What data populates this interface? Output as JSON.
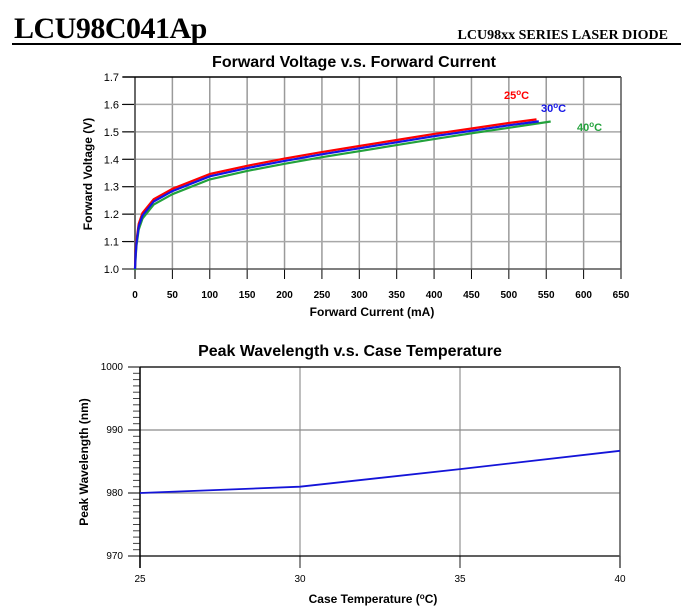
{
  "header": {
    "part_number": "LCU98C041Ap",
    "series": "LCU98xx SERIES LASER DIODE"
  },
  "colors": {
    "t25": "#ff0000",
    "t30": "#1414e6",
    "t40": "#23a23c",
    "wavelength_line": "#1414d8",
    "grid": "#a0a0a0",
    "axis": "#000000"
  },
  "chart_data": [
    {
      "type": "line",
      "title": "Forward Voltage v.s. Forward Current",
      "xlabel": "Forward Current (mA)",
      "ylabel": "Forward Voltage (V)",
      "xlim": [
        0,
        650
      ],
      "ylim": [
        1.0,
        1.7
      ],
      "xticks": [
        "0",
        "50",
        "100",
        "150",
        "200",
        "250",
        "300",
        "350",
        "400",
        "450",
        "500",
        "550",
        "600",
        "650"
      ],
      "yticks": [
        "1.0",
        "1.1",
        "1.2",
        "1.3",
        "1.4",
        "1.5",
        "1.6",
        "1.7"
      ],
      "grid": true,
      "series": [
        {
          "name": "25°C",
          "label_main": "25",
          "label_deg": "o",
          "label_unit": "C",
          "color_key": "t25",
          "x": [
            0,
            1,
            2,
            5,
            10,
            25,
            50,
            100,
            150,
            200,
            250,
            300,
            350,
            400,
            450,
            500,
            537
          ],
          "y": [
            1.0,
            1.06,
            1.1,
            1.16,
            1.2,
            1.25,
            1.288,
            1.342,
            1.372,
            1.398,
            1.422,
            1.444,
            1.466,
            1.488,
            1.508,
            1.528,
            1.541
          ]
        },
        {
          "name": "30°C",
          "label_main": "30",
          "label_deg": "o",
          "label_unit": "C",
          "color_key": "t30",
          "x": [
            0,
            1,
            2,
            5,
            10,
            25,
            50,
            100,
            150,
            200,
            250,
            300,
            350,
            400,
            450,
            500,
            540
          ],
          "y": [
            1.0,
            1.055,
            1.095,
            1.155,
            1.195,
            1.246,
            1.284,
            1.338,
            1.368,
            1.394,
            1.418,
            1.44,
            1.462,
            1.484,
            1.504,
            1.524,
            1.538
          ]
        },
        {
          "name": "40°C",
          "label_main": "40",
          "label_deg": "o",
          "label_unit": "C",
          "color_key": "t40",
          "x": [
            0,
            1,
            2,
            5,
            10,
            25,
            50,
            100,
            150,
            200,
            250,
            300,
            350,
            400,
            450,
            500,
            556
          ],
          "y": [
            1.0,
            1.05,
            1.09,
            1.148,
            1.188,
            1.239,
            1.277,
            1.331,
            1.362,
            1.388,
            1.412,
            1.434,
            1.456,
            1.478,
            1.499,
            1.519,
            1.542
          ]
        }
      ]
    },
    {
      "type": "line",
      "title": "Peak Wavelength v.s. Case Temperature",
      "xlabel_main": "Case Temperature (",
      "xlabel_deg": "o",
      "xlabel_end": "C)",
      "xlabel": "Case Temperature (°C)",
      "ylabel": "Peak Wavelength (nm)",
      "xlim": [
        25,
        40
      ],
      "ylim": [
        970,
        1000
      ],
      "xticks": [
        "25",
        "30",
        "35",
        "40"
      ],
      "yticks": [
        "970",
        "980",
        "990",
        "1000"
      ],
      "grid": true,
      "series": [
        {
          "name": "Peak Wavelength",
          "x": [
            25,
            30,
            35,
            40
          ],
          "y": [
            980.0,
            981.0,
            983.8,
            986.7
          ]
        }
      ]
    }
  ]
}
